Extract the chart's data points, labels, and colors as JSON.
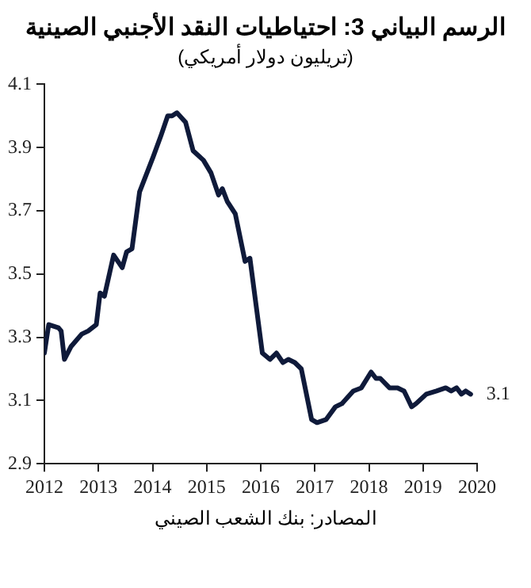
{
  "chart_data": {
    "type": "line",
    "title": "الرسم البياني 3: احتياطيات النقد الأجنبي الصينية",
    "subtitle": "(تريليون دولار أمريكي)",
    "x": [
      2012,
      2012.08,
      2012.26,
      2012.31,
      2012.37,
      2012.49,
      2012.69,
      2012.81,
      2012.96,
      2013.03,
      2013.11,
      2013.28,
      2013.44,
      2013.52,
      2013.62,
      2013.76,
      2014.01,
      2014.16,
      2014.28,
      2014.36,
      2014.45,
      2014.61,
      2014.75,
      2014.94,
      2015.08,
      2015.22,
      2015.29,
      2015.38,
      2015.53,
      2015.71,
      2015.8,
      2016.03,
      2016.17,
      2016.29,
      2016.41,
      2016.51,
      2016.63,
      2016.75,
      2016.94,
      2017.04,
      2017.21,
      2017.38,
      2017.5,
      2017.71,
      2017.86,
      2018.04,
      2018.13,
      2018.21,
      2018.38,
      2018.53,
      2018.65,
      2018.79,
      2018.87,
      2019.06,
      2019.25,
      2019.42,
      2019.52,
      2019.62,
      2019.71,
      2019.79,
      2019.88
    ],
    "series": [
      {
        "color": "#0f1a3a",
        "values": [
          3.25,
          3.34,
          3.33,
          3.32,
          3.23,
          3.27,
          3.31,
          3.32,
          3.34,
          3.44,
          3.43,
          3.56,
          3.52,
          3.57,
          3.58,
          3.76,
          3.87,
          3.94,
          4.0,
          4.0,
          4.01,
          3.98,
          3.89,
          3.86,
          3.82,
          3.75,
          3.77,
          3.73,
          3.69,
          3.54,
          3.55,
          3.25,
          3.23,
          3.25,
          3.22,
          3.23,
          3.22,
          3.2,
          3.04,
          3.03,
          3.04,
          3.08,
          3.09,
          3.13,
          3.14,
          3.19,
          3.17,
          3.17,
          3.14,
          3.14,
          3.13,
          3.08,
          3.09,
          3.12,
          3.13,
          3.14,
          3.13,
          3.14,
          3.12,
          3.13,
          3.12
        ]
      }
    ],
    "xlim": [
      2012,
      2020
    ],
    "xticks": [
      2012,
      2013,
      2014,
      2015,
      2016,
      2017,
      2018,
      2019,
      2020
    ],
    "ylim": [
      2.9,
      4.1
    ],
    "yticks": [
      2.9,
      3.1,
      3.3,
      3.5,
      3.7,
      3.9,
      4.1
    ],
    "grid": false,
    "legend": false,
    "marker": "none",
    "line_style": "solid",
    "annotations": [
      {
        "text": "3.1",
        "x": 2019.88,
        "y": 3.12
      },
      "المصادر: بنك الشعب الصيني"
    ]
  }
}
